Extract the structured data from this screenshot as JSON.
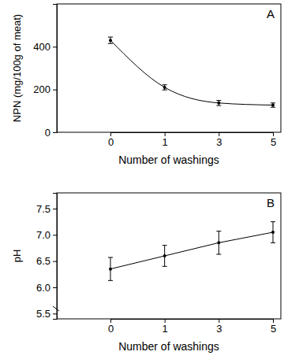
{
  "chart_data": [
    {
      "type": "line",
      "title": "A",
      "x_label": "Number of washings",
      "y_label": "NPN (mg/100g of meat)",
      "categories": [
        "0",
        "1",
        "3",
        "5"
      ],
      "values": [
        430,
        210,
        137,
        127
      ],
      "errors": [
        15,
        12,
        12,
        10
      ],
      "ylim": [
        0,
        600
      ],
      "yticks": [
        0,
        200,
        400
      ],
      "color": "#000000",
      "line_style": "smooth",
      "marker": "circle"
    },
    {
      "type": "line",
      "title": "B",
      "x_label": "Number of washings",
      "y_label": "pH",
      "categories": [
        "0",
        "1",
        "3",
        "5"
      ],
      "values": [
        6.35,
        6.6,
        6.85,
        7.05
      ],
      "errors": [
        0.22,
        0.2,
        0.22,
        0.2
      ],
      "ylim": [
        5.4,
        7.8
      ],
      "yticks": [
        5.5,
        {
          "value": 6,
          "label": "6.0"
        },
        6.5,
        {
          "value": 7,
          "label": "7.0"
        },
        7.5
      ],
      "color": "#000000",
      "line_style": "solid",
      "marker": "circle"
    }
  ]
}
